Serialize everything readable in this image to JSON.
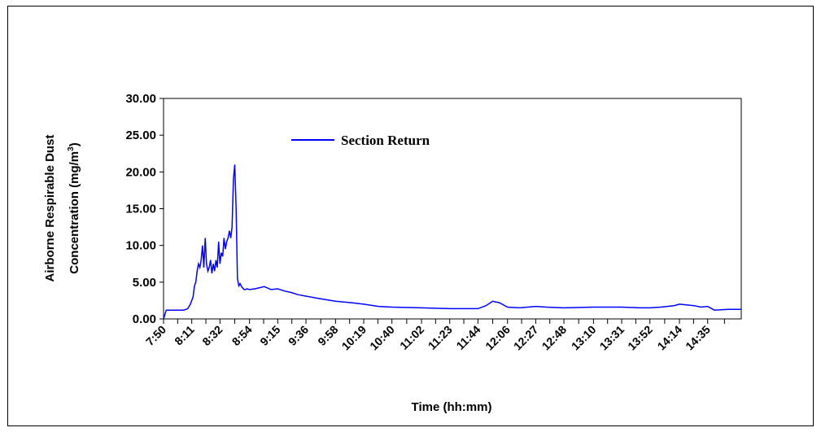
{
  "chart_data": {
    "type": "line",
    "xlabel": "Time (hh:mm)",
    "ylabel_line1": "Airborne Respirable Dust",
    "ylabel_line2_prefix": "Concentration (mg/m",
    "ylabel_line2_sup": "3",
    "ylabel_line2_suffix": ")",
    "ylim": [
      0,
      30
    ],
    "yticks": [
      "0.00",
      "5.00",
      "10.00",
      "15.00",
      "20.00",
      "25.00",
      "30.00"
    ],
    "xlim": [
      "7:50",
      "15:00"
    ],
    "xticks": [
      "7:50",
      "8:11",
      "8:32",
      "8:54",
      "9:15",
      "9:36",
      "9:58",
      "10:19",
      "10:40",
      "11:02",
      "11:23",
      "11:44",
      "12:06",
      "12:27",
      "12:48",
      "13:10",
      "13:31",
      "13:52",
      "14:14",
      "14:35"
    ],
    "legend_position": "upper-center",
    "series": [
      {
        "name": "Section Return",
        "color": "#0000ff",
        "x": [
          "7:50",
          "7:52",
          "8:00",
          "8:05",
          "8:08",
          "8:10",
          "8:12",
          "8:13",
          "8:14",
          "8:15",
          "8:16",
          "8:17",
          "8:18",
          "8:19",
          "8:20",
          "8:21",
          "8:22",
          "8:23",
          "8:24",
          "8:25",
          "8:26",
          "8:27",
          "8:28",
          "8:29",
          "8:30",
          "8:31",
          "8:32",
          "8:33",
          "8:34",
          "8:35",
          "8:36",
          "8:37",
          "8:38",
          "8:39",
          "8:40",
          "8:41",
          "8:42",
          "8:43",
          "8:44",
          "8:45",
          "8:46",
          "8:47",
          "8:48",
          "8:49",
          "8:50",
          "8:51",
          "8:52",
          "8:54",
          "8:58",
          "9:05",
          "9:10",
          "9:15",
          "9:20",
          "9:25",
          "9:30",
          "9:36",
          "9:45",
          "9:58",
          "10:10",
          "10:19",
          "10:30",
          "10:40",
          "11:02",
          "11:23",
          "11:44",
          "11:50",
          "11:55",
          "12:00",
          "12:06",
          "12:15",
          "12:27",
          "12:35",
          "12:48",
          "13:10",
          "13:31",
          "13:45",
          "13:52",
          "14:00",
          "14:10",
          "14:14",
          "14:25",
          "14:30",
          "14:35",
          "14:40",
          "14:50",
          "15:00"
        ],
        "y": [
          0.0,
          1.2,
          1.2,
          1.2,
          1.4,
          2.0,
          3.0,
          4.5,
          5.0,
          6.5,
          7.5,
          7.0,
          8.0,
          10.0,
          7.0,
          11.0,
          7.5,
          6.5,
          7.0,
          8.0,
          6.2,
          7.5,
          6.5,
          8.0,
          7.0,
          10.5,
          7.5,
          9.0,
          8.5,
          11.0,
          9.5,
          10.5,
          11.0,
          12.0,
          11.0,
          12.5,
          19.0,
          21.0,
          15.0,
          5.5,
          4.5,
          4.8,
          4.4,
          4.2,
          4.0,
          4.0,
          4.1,
          4.0,
          4.1,
          4.4,
          4.0,
          4.1,
          3.8,
          3.6,
          3.3,
          3.1,
          2.8,
          2.4,
          2.2,
          2.0,
          1.7,
          1.6,
          1.5,
          1.4,
          1.4,
          1.8,
          2.4,
          2.2,
          1.6,
          1.5,
          1.7,
          1.6,
          1.5,
          1.6,
          1.6,
          1.5,
          1.5,
          1.6,
          1.8,
          2.0,
          1.8,
          1.6,
          1.7,
          1.2,
          1.3,
          1.3
        ]
      }
    ]
  }
}
